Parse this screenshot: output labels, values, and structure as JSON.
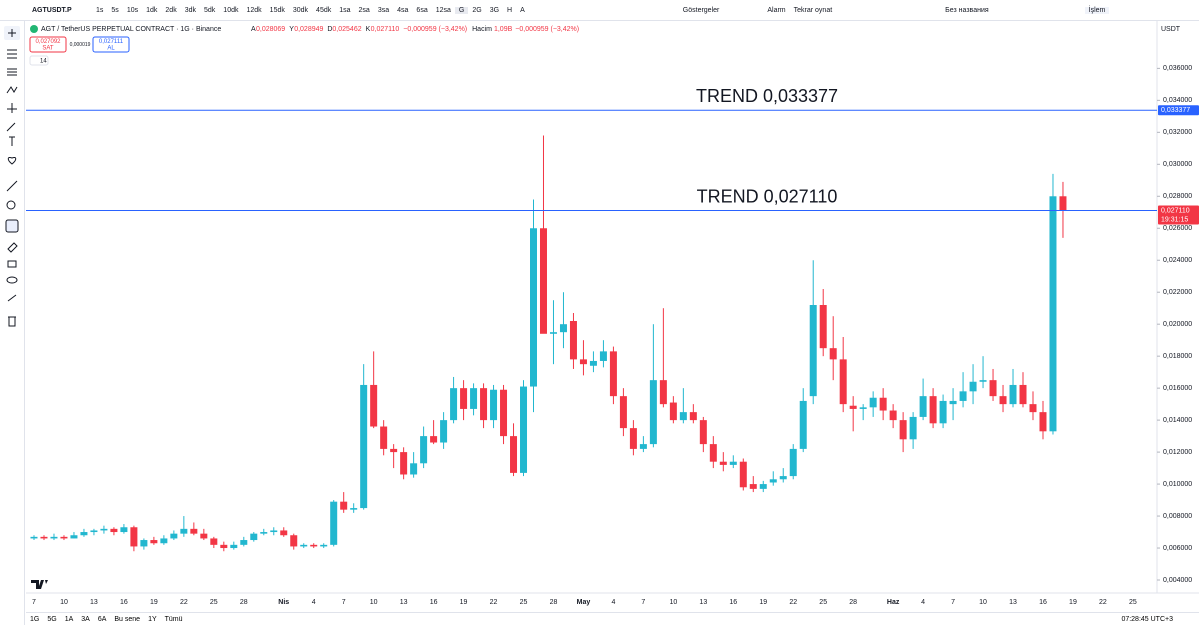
{
  "toolbar": {
    "symbol": "AGTUSDT.P",
    "timeframes": [
      "1s",
      "5s",
      "10s",
      "1dk",
      "2dk",
      "3dk",
      "5dk",
      "10dk",
      "12dk",
      "15dk",
      "30dk",
      "45dk",
      "1sa",
      "2sa",
      "3sa",
      "4sa",
      "6sa",
      "12sa",
      "G",
      "2G",
      "3G",
      "H",
      "A"
    ],
    "indicators": "Göstergeler",
    "alarm": "Alarm",
    "replay": "Tekrar oynat",
    "layout_name": "Без названия",
    "trade": "İşlem"
  },
  "legend": {
    "title": "AGT / TetherUS PERPETUAL CONTRACT · 1G · Binance",
    "ohlc": [
      {
        "k": "A",
        "v": "0,028069"
      },
      {
        "k": "Y",
        "v": "0,028949"
      },
      {
        "k": "D",
        "v": "0,025462"
      },
      {
        "k": "K",
        "v": "0,027110"
      }
    ],
    "change": "−0,000959 (−3,42%)",
    "volume_label": "Hacim",
    "volume": "1,09B",
    "volume_change": "−0,000959 (−3,42%)",
    "sell_price": "0,027092",
    "sell": "SAT",
    "spread": "0,000019",
    "buy_price": "0,027111",
    "buy": "AL",
    "indicator_len": "14"
  },
  "bottom_bar": {
    "ranges": [
      "1G",
      "5G",
      "1A",
      "3A",
      "6A",
      "Bu sene",
      "1Y",
      "Tümü"
    ],
    "clock": "07:28:45 UTC+3"
  },
  "chart_data": {
    "type": "candlestick",
    "unit": "USDT",
    "up_color": "#22b7cf",
    "down_color": "#f23645",
    "categories": [
      "7",
      null,
      null,
      "10",
      null,
      null,
      "13",
      null,
      null,
      "16",
      null,
      null,
      "19",
      null,
      null,
      "22",
      null,
      null,
      "25",
      null,
      null,
      "28",
      null,
      null,
      null,
      "Nis",
      null,
      null,
      "4",
      null,
      null,
      "7",
      null,
      null,
      "10",
      null,
      null,
      "13",
      null,
      null,
      "16",
      null,
      null,
      "19",
      null,
      null,
      "22",
      null,
      null,
      "25",
      null,
      null,
      "28",
      null,
      null,
      "May",
      null,
      null,
      "4",
      null,
      null,
      "7",
      null,
      null,
      "10",
      null,
      null,
      "13",
      null,
      null,
      "16",
      null,
      null,
      "19",
      null,
      null,
      "22",
      null,
      null,
      "25",
      null,
      null,
      "28",
      null,
      null,
      null,
      "Haz",
      null,
      null,
      "4",
      null,
      null,
      "7",
      null,
      null,
      "10",
      null,
      null,
      "13",
      null,
      null,
      "16",
      null,
      null,
      "19",
      null,
      null,
      "22",
      null,
      null,
      "25"
    ],
    "open": [
      0.0066,
      0.0067,
      0.0066,
      0.0067,
      0.0066,
      0.0068,
      0.007,
      0.0071,
      0.0072,
      0.007,
      0.0073,
      0.0061,
      0.0065,
      0.0063,
      0.0066,
      0.0069,
      0.0072,
      0.0069,
      0.0066,
      0.0062,
      0.006,
      0.0062,
      0.0065,
      0.0069,
      0.007,
      0.0071,
      0.0068,
      0.0061,
      0.0062,
      0.0061,
      0.0062,
      0.0089,
      0.0084,
      0.0085,
      0.0162,
      0.0136,
      0.0122,
      0.012,
      0.0106,
      0.0113,
      0.013,
      0.0126,
      0.014,
      0.016,
      0.0147,
      0.016,
      0.014,
      0.0159,
      0.013,
      0.0107,
      0.0161,
      0.026,
      0.0194,
      0.0195,
      0.0202,
      0.0178,
      0.0174,
      0.0177,
      0.0183,
      0.0155,
      0.0135,
      0.0122,
      0.0125,
      0.0165,
      0.0151,
      0.014,
      0.0145,
      0.014,
      0.0125,
      0.0114,
      0.0112,
      0.0114,
      0.01,
      0.0097,
      0.0101,
      0.0103,
      0.0105,
      0.0122,
      0.0155,
      0.0212,
      0.0185,
      0.0178,
      0.0149,
      0.0147,
      0.0148,
      0.0154,
      0.0146,
      0.014,
      0.0128,
      0.0142,
      0.0155,
      0.0138,
      0.015,
      0.0152,
      0.0158,
      0.0164,
      0.0165,
      0.0155,
      0.015,
      0.0162,
      0.015,
      0.0145,
      0.0133,
      0.028,
      null,
      null,
      null,
      null,
      null,
      null,
      null
    ],
    "high": [
      0.0068,
      0.0068,
      0.0069,
      0.0068,
      0.007,
      0.0072,
      0.0072,
      0.0074,
      0.0073,
      0.0075,
      0.0074,
      0.0066,
      0.0067,
      0.0068,
      0.0071,
      0.008,
      0.0076,
      0.0072,
      0.0067,
      0.0064,
      0.0064,
      0.0067,
      0.007,
      0.0072,
      0.0073,
      0.0073,
      0.0069,
      0.0063,
      0.0063,
      0.0063,
      0.009,
      0.0095,
      0.0088,
      0.0175,
      0.0183,
      0.014,
      0.0125,
      0.0123,
      0.012,
      0.0136,
      0.014,
      0.0145,
      0.0167,
      0.0165,
      0.0163,
      0.0163,
      0.0162,
      0.0162,
      0.0138,
      0.0165,
      0.0278,
      0.0318,
      0.0215,
      0.022,
      0.0207,
      0.019,
      0.0183,
      0.019,
      0.0186,
      0.016,
      0.014,
      0.013,
      0.02,
      0.021,
      0.0155,
      0.016,
      0.015,
      0.0142,
      0.013,
      0.012,
      0.0118,
      0.0116,
      0.0105,
      0.0102,
      0.0108,
      0.011,
      0.0125,
      0.016,
      0.024,
      0.0222,
      0.0205,
      0.0192,
      0.0155,
      0.015,
      0.0158,
      0.016,
      0.015,
      0.0145,
      0.0145,
      0.0166,
      0.016,
      0.0156,
      0.016,
      0.017,
      0.0175,
      0.018,
      0.0172,
      0.0162,
      0.0172,
      0.017,
      0.0158,
      0.0152,
      0.0294,
      0.0289,
      null,
      null,
      null,
      null,
      null,
      null,
      null
    ],
    "low": [
      0.0065,
      0.0065,
      0.0065,
      0.0065,
      0.0066,
      0.0067,
      0.0068,
      0.0069,
      0.0068,
      0.0069,
      0.0058,
      0.0059,
      0.0062,
      0.0062,
      0.0065,
      0.0067,
      0.0068,
      0.0065,
      0.006,
      0.0058,
      0.0059,
      0.0061,
      0.0064,
      0.0068,
      0.0068,
      0.0067,
      0.0059,
      0.006,
      0.006,
      0.006,
      0.0061,
      0.0082,
      0.0082,
      0.0084,
      0.0135,
      0.0118,
      0.011,
      0.0103,
      0.0104,
      0.011,
      0.0125,
      0.0122,
      0.0138,
      0.014,
      0.0143,
      0.0135,
      0.0135,
      0.0125,
      0.0105,
      0.0105,
      0.0145,
      0.0195,
      0.0175,
      0.0185,
      0.0172,
      0.0168,
      0.017,
      0.0173,
      0.015,
      0.013,
      0.0118,
      0.012,
      0.0123,
      0.0148,
      0.0138,
      0.0138,
      0.0138,
      0.012,
      0.011,
      0.0108,
      0.011,
      0.0096,
      0.0095,
      0.0095,
      0.0099,
      0.0101,
      0.0103,
      0.012,
      0.015,
      0.018,
      0.0165,
      0.0145,
      0.0133,
      0.014,
      0.0142,
      0.014,
      0.0135,
      0.012,
      0.0122,
      0.014,
      0.0135,
      0.0135,
      0.014,
      0.0148,
      0.015,
      0.016,
      0.0152,
      0.0145,
      0.0148,
      0.0148,
      0.014,
      0.0128,
      0.0131,
      0.0254,
      null,
      null,
      null,
      null,
      null,
      null,
      null
    ],
    "close": [
      0.0067,
      0.0066,
      0.0067,
      0.0066,
      0.0068,
      0.007,
      0.0071,
      0.0072,
      0.007,
      0.0073,
      0.0061,
      0.0065,
      0.0063,
      0.0066,
      0.0069,
      0.0072,
      0.0069,
      0.0066,
      0.0062,
      0.006,
      0.0062,
      0.0065,
      0.0069,
      0.007,
      0.0071,
      0.0068,
      0.0061,
      0.0062,
      0.0061,
      0.0062,
      0.0089,
      0.0084,
      0.0085,
      0.0162,
      0.0136,
      0.0122,
      0.012,
      0.0106,
      0.0113,
      0.013,
      0.0126,
      0.014,
      0.016,
      0.0147,
      0.016,
      0.014,
      0.0159,
      0.013,
      0.0107,
      0.0161,
      0.026,
      0.0194,
      0.0195,
      0.02,
      0.0178,
      0.0175,
      0.0177,
      0.0183,
      0.0155,
      0.0135,
      0.0122,
      0.0125,
      0.0165,
      0.015,
      0.014,
      0.0145,
      0.014,
      0.0125,
      0.0114,
      0.0112,
      0.0114,
      0.0098,
      0.0097,
      0.01,
      0.0103,
      0.0105,
      0.0122,
      0.0152,
      0.0212,
      0.0185,
      0.0178,
      0.015,
      0.0147,
      0.0148,
      0.0154,
      0.0146,
      0.014,
      0.0128,
      0.0142,
      0.0155,
      0.0138,
      0.0152,
      0.0152,
      0.0158,
      0.0164,
      0.0165,
      0.0155,
      0.015,
      0.0162,
      0.015,
      0.0145,
      0.0133,
      0.028,
      0.02711,
      null,
      null,
      null,
      null,
      null,
      null,
      null
    ],
    "ylim": [
      0.00275,
      0.0389
    ],
    "yticks": [
      {
        "value": 0.004,
        "label": "0,004000"
      },
      {
        "value": 0.006,
        "label": "0,006000"
      },
      {
        "value": 0.008,
        "label": "0,008000"
      },
      {
        "value": 0.01,
        "label": "0,010000"
      },
      {
        "value": 0.012,
        "label": "0,012000"
      },
      {
        "value": 0.014,
        "label": "0,014000"
      },
      {
        "value": 0.016,
        "label": "0,016000"
      },
      {
        "value": 0.018,
        "label": "0,018000"
      },
      {
        "value": 0.02,
        "label": "0,020000"
      },
      {
        "value": 0.022,
        "label": "0,022000"
      },
      {
        "value": 0.024,
        "label": "0,024000"
      },
      {
        "value": 0.026,
        "label": "0,026000"
      },
      {
        "value": 0.028,
        "label": "0,028000"
      },
      {
        "value": 0.03,
        "label": "0,030000"
      },
      {
        "value": 0.032,
        "label": "0,032000"
      },
      {
        "value": 0.034,
        "label": "0,034000"
      },
      {
        "value": 0.036,
        "label": "0,036000"
      }
    ],
    "hlines": [
      {
        "value": 0.033377,
        "label": "TREND 0,033377",
        "axis_label": "0,033377",
        "color": "#2962ff"
      },
      {
        "value": 0.02711,
        "label": "TREND 0,027110",
        "color": "#2962ff"
      }
    ],
    "last_price": {
      "label": "0,027110",
      "countdown": "19:31:15"
    }
  }
}
